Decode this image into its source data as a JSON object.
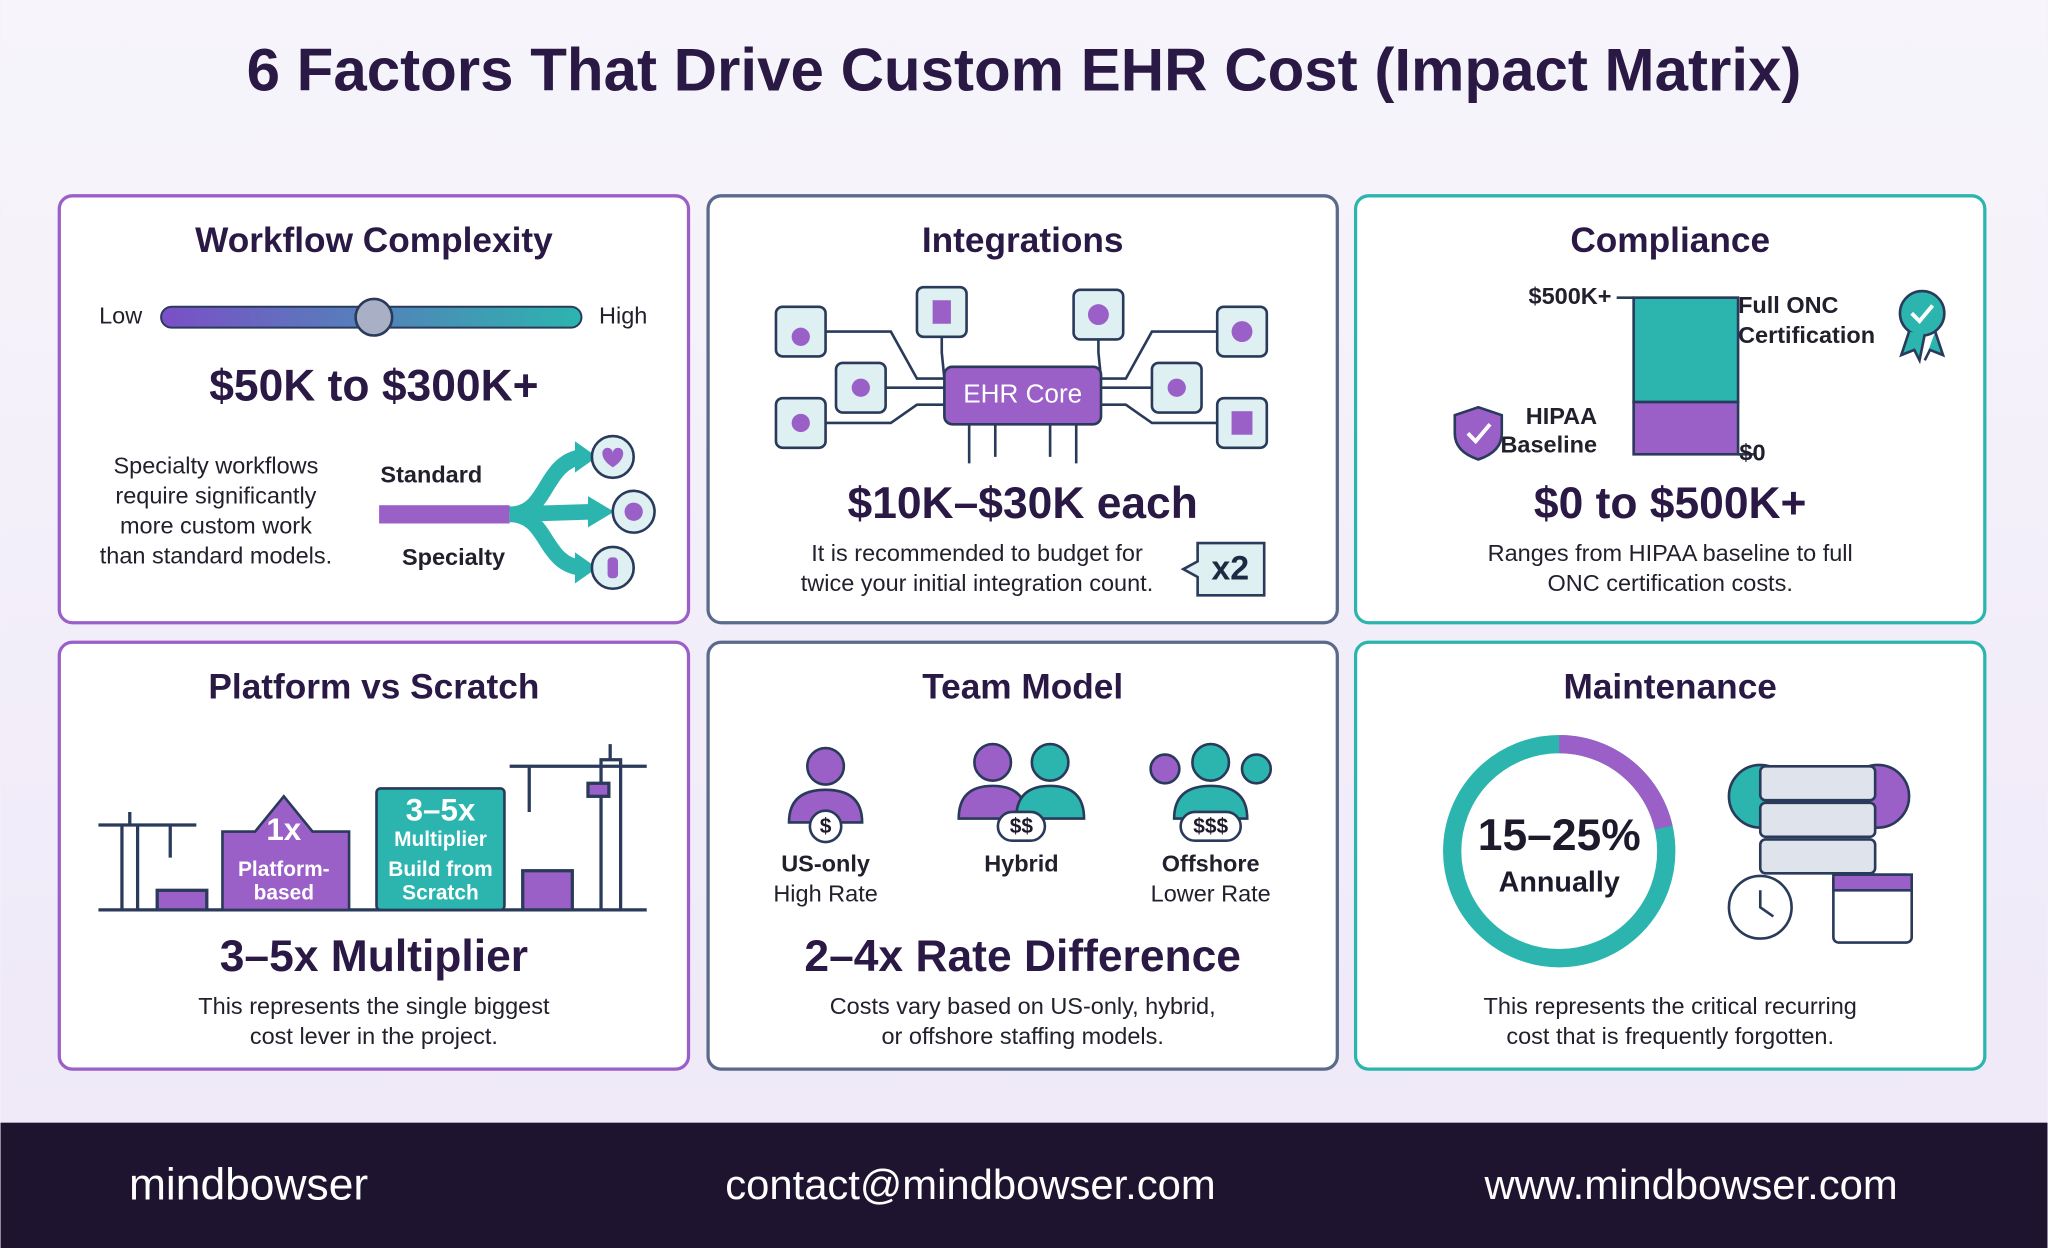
{
  "title": "6 Factors That Drive Custom EHR Cost (Impact Matrix)",
  "cards": [
    {
      "title": "Workflow Complexity",
      "scale_low": "Low",
      "scale_high": "High",
      "range": "$50K to $300K+",
      "description": [
        "Specialty workflows",
        "require significantly",
        "more custom work",
        "than standard models."
      ],
      "branch_labels": [
        "Standard",
        "Specialty"
      ]
    },
    {
      "title": "Integrations",
      "hub": "EHR Core",
      "range": "$10K–$30K each",
      "description": [
        "It is recommended to budget for",
        "twice your initial integration count."
      ],
      "badge": "x2"
    },
    {
      "title": "Compliance",
      "bar_top_label": "$500K+",
      "bar_bottom_label": "$0",
      "top_label": [
        "Full ONC",
        "Certification"
      ],
      "bottom_label": [
        "HIPAA",
        "Baseline"
      ],
      "range": "$0 to $500K+",
      "description": [
        "Ranges from HIPAA baseline to full",
        "ONC certification costs."
      ]
    },
    {
      "title": "Platform vs Scratch",
      "blocks": [
        {
          "value": "1x",
          "label": [
            "Platform-",
            "based"
          ]
        },
        {
          "value": "3–5x",
          "label": [
            "Multiplier",
            "Build from",
            "Scratch"
          ]
        }
      ],
      "range": "3–5x Multiplier",
      "description": [
        "This represents the single biggest",
        "cost lever in the project."
      ]
    },
    {
      "title": "Team Model",
      "models": [
        {
          "symbol": "$",
          "label": [
            "US-only",
            "High Rate"
          ]
        },
        {
          "symbol": "$$",
          "label": [
            "Hybrid"
          ]
        },
        {
          "symbol": "$$$",
          "label": [
            "Offshore",
            "Lower Rate"
          ]
        }
      ],
      "range": "2–4x Rate Difference",
      "description": [
        "Costs vary based on US-only, hybrid,",
        "or offshore staffing models."
      ]
    },
    {
      "title": "Maintenance",
      "ring_value": "15–25%",
      "ring_label": "Annually",
      "description": [
        "This represents the critical recurring",
        "cost that is frequently forgotten."
      ]
    }
  ],
  "footer": {
    "brand": "mindbowser",
    "email": "contact@mindbowser.com",
    "website": "www.mindbowser.com"
  }
}
